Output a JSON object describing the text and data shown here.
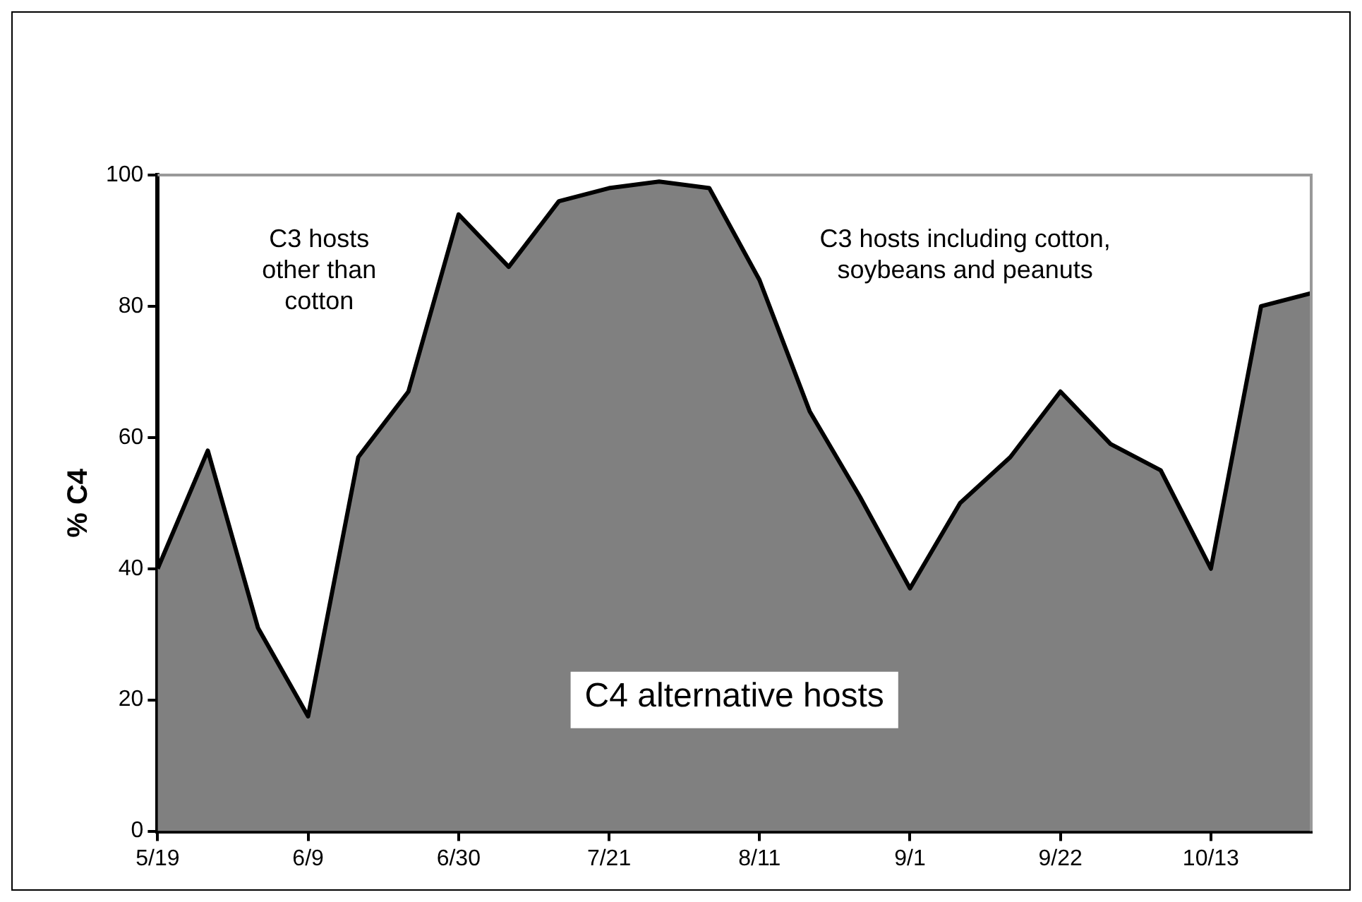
{
  "chart_data": {
    "type": "area",
    "ylabel": "% C4",
    "x": [
      "--05-19",
      "--05-26",
      "--06-02",
      "--06-09",
      "--06-16",
      "--06-23",
      "--06-30",
      "--07-07",
      "--07-14",
      "--07-21",
      "--07-28",
      "--08-04",
      "--08-11",
      "--08-18",
      "--08-25",
      "--09-01",
      "--09-08",
      "--09-15",
      "--09-22",
      "--09-29",
      "--10-06",
      "--10-13",
      "--10-20",
      "--10-27"
    ],
    "series": [
      {
        "color": "#808080",
        "values": [
          40,
          58,
          31,
          17.5,
          57,
          67,
          94,
          86,
          96,
          98,
          99,
          98,
          84,
          64,
          51,
          37,
          50,
          57,
          67,
          59,
          55,
          40,
          80,
          82
        ]
      }
    ],
    "xlim": [
      "--05-19",
      "--10-27"
    ],
    "xticks": [
      {
        "value": "--05-19",
        "label": "5/19"
      },
      {
        "value": "--06-09",
        "label": "6/9"
      },
      {
        "value": "--06-30",
        "label": "6/30"
      },
      {
        "value": "--07-21",
        "label": "7/21"
      },
      {
        "value": "--08-11",
        "label": "8/11"
      },
      {
        "value": "--09-01",
        "label": "9/1"
      },
      {
        "value": "--09-22",
        "label": "9/22"
      },
      {
        "value": "--10-13",
        "label": "10/13"
      }
    ],
    "ylim": [
      0,
      100
    ],
    "yticks": [
      0,
      20,
      40,
      60,
      80,
      100
    ],
    "grid": false,
    "legend": false,
    "marker": "none",
    "line_style": "solid",
    "annotations": [
      "C3 hosts\nother than\ncotton",
      "C3 hosts including cotton,\nsoybeans and peanuts",
      "C4 alternative hosts"
    ]
  }
}
